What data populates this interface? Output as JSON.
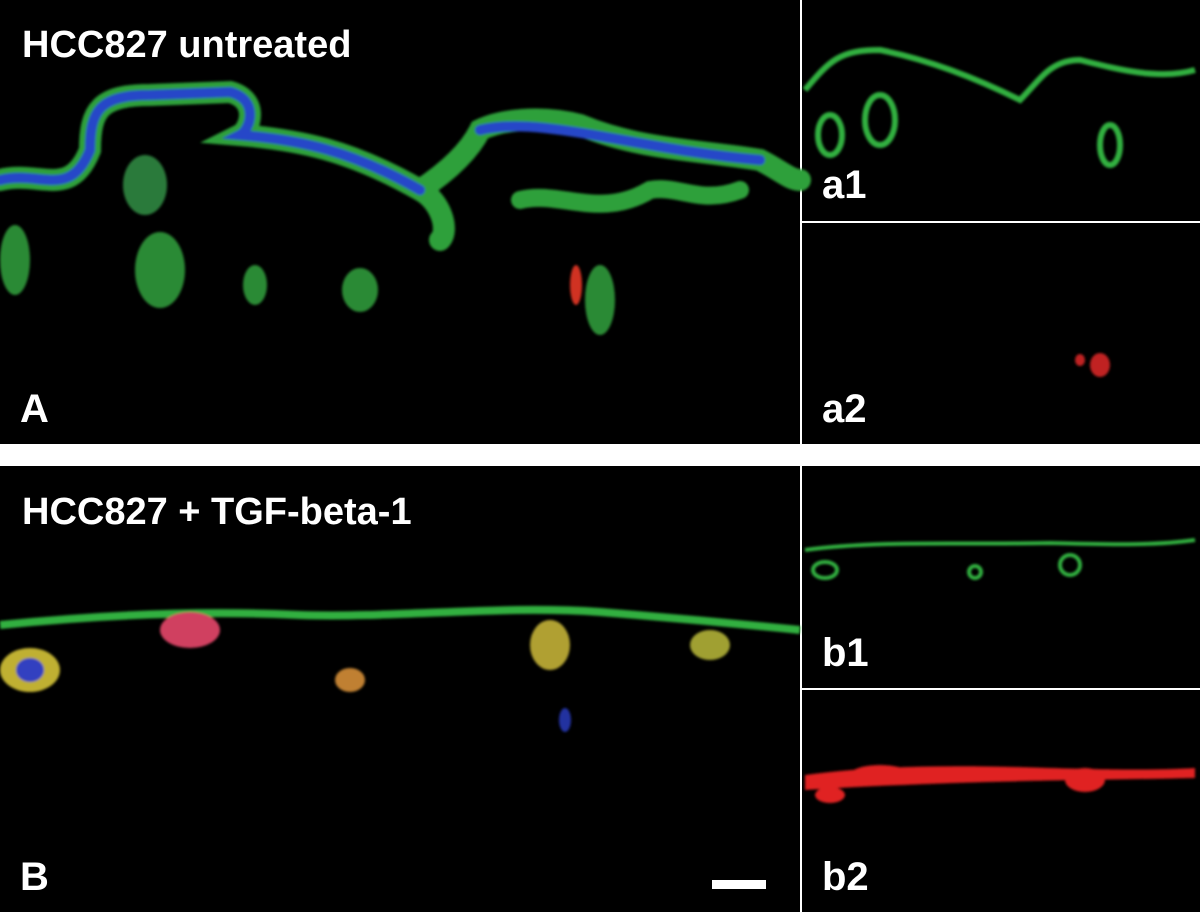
{
  "panels": {
    "top": {
      "title": "HCC827 untreated",
      "label": "A",
      "sub1": "a1",
      "sub2": "a2"
    },
    "bottom": {
      "title": "HCC827 + TGF-beta-1",
      "label": "B",
      "sub1": "b1",
      "sub2": "b2"
    }
  }
}
